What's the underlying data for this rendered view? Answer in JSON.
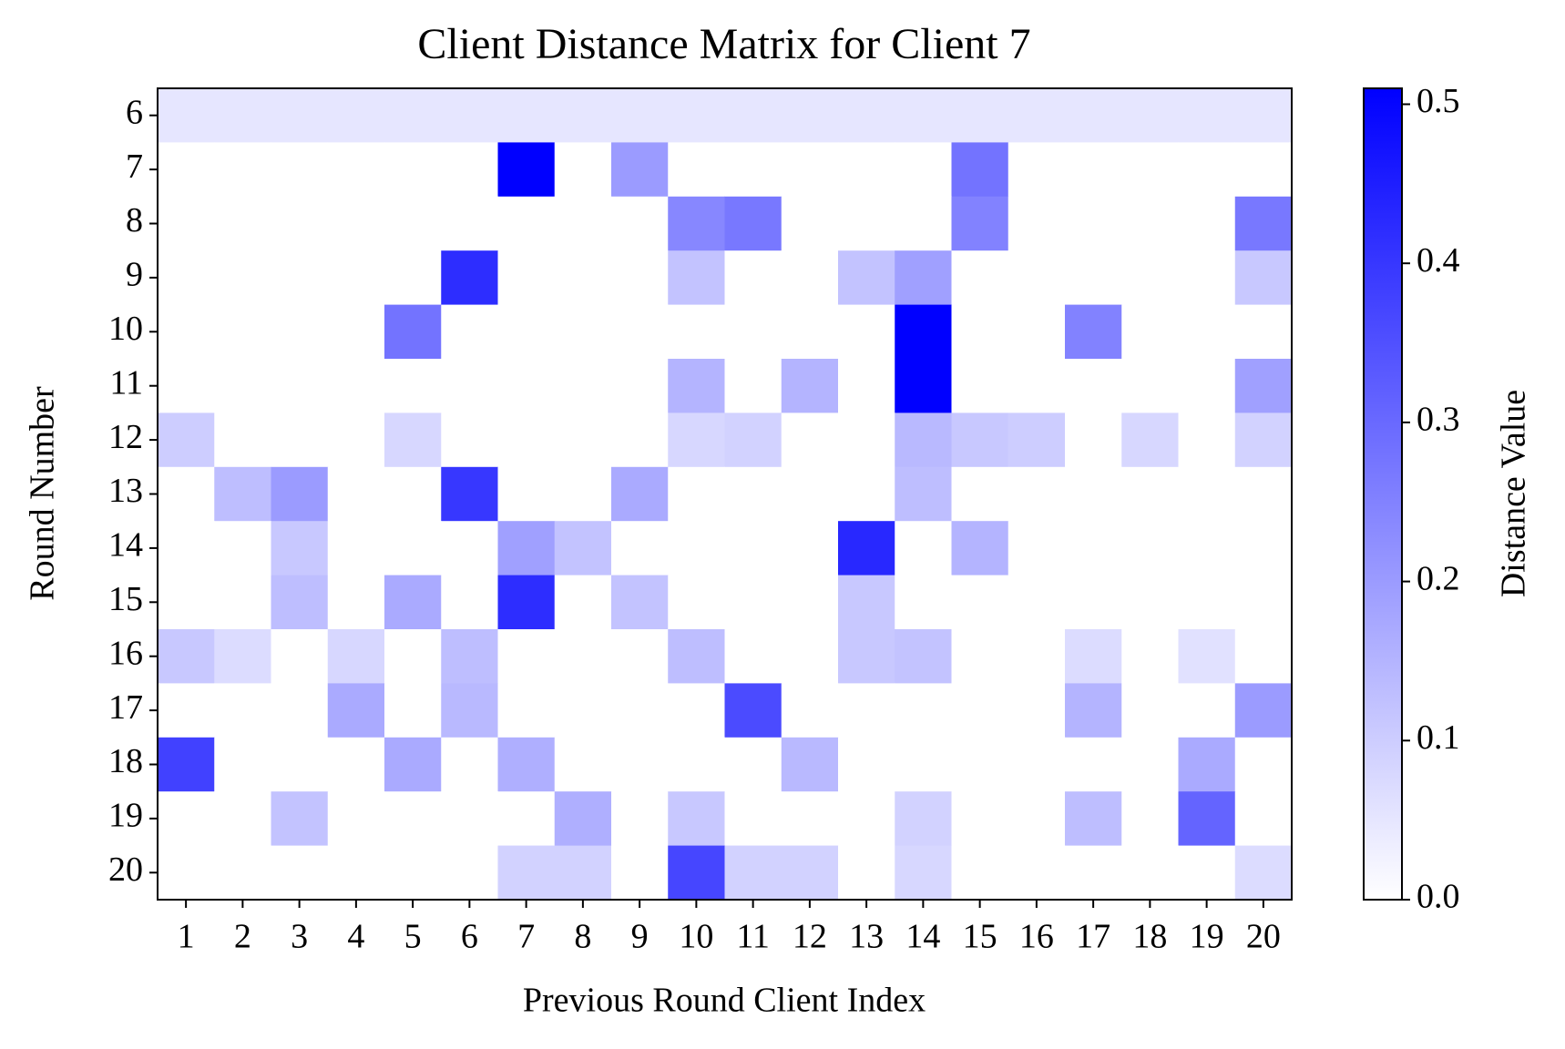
{
  "chart_data": {
    "type": "heatmap",
    "title": "Client Distance Matrix for Client 7",
    "x_label": "Previous Round Client Index",
    "y_label": "Round Number",
    "colorbar_label": "Distance Value",
    "x_categories": [
      "1",
      "2",
      "3",
      "4",
      "5",
      "6",
      "7",
      "8",
      "9",
      "10",
      "11",
      "12",
      "13",
      "14",
      "15",
      "16",
      "17",
      "18",
      "19",
      "20"
    ],
    "y_categories": [
      "6",
      "7",
      "8",
      "9",
      "10",
      "11",
      "12",
      "13",
      "14",
      "15",
      "16",
      "17",
      "18",
      "19",
      "20"
    ],
    "z": [
      [
        0.05,
        0.05,
        0.05,
        0.05,
        0.05,
        0.05,
        0.05,
        0.05,
        0.05,
        0.05,
        0.05,
        0.05,
        0.05,
        0.05,
        0.05,
        0.05,
        0.05,
        0.05,
        0.05,
        0.05
      ],
      [
        0,
        0,
        0,
        0,
        0,
        0,
        0.51,
        0,
        0.2,
        0,
        0,
        0,
        0,
        0,
        0.28,
        0,
        0,
        0,
        0,
        0
      ],
      [
        0,
        0,
        0,
        0,
        0,
        0,
        0,
        0,
        0,
        0.24,
        0.27,
        0,
        0,
        0,
        0.25,
        0,
        0,
        0,
        0,
        0.27
      ],
      [
        0,
        0,
        0,
        0,
        0,
        0.42,
        0,
        0,
        0,
        0.12,
        0,
        0,
        0.12,
        0.19,
        0,
        0,
        0,
        0,
        0,
        0.11
      ],
      [
        0,
        0,
        0,
        0,
        0.28,
        0,
        0,
        0,
        0,
        0,
        0,
        0,
        0,
        0.51,
        0,
        0,
        0.25,
        0,
        0,
        0
      ],
      [
        0,
        0,
        0,
        0,
        0,
        0,
        0,
        0,
        0,
        0.15,
        0,
        0.15,
        0,
        0.51,
        0,
        0,
        0,
        0,
        0,
        0.19
      ],
      [
        0.1,
        0,
        0,
        0,
        0.08,
        0,
        0,
        0,
        0,
        0.08,
        0.09,
        0,
        0,
        0.14,
        0.11,
        0.1,
        0,
        0.08,
        0,
        0.09
      ],
      [
        0,
        0.13,
        0.2,
        0,
        0,
        0.4,
        0,
        0,
        0.17,
        0,
        0,
        0,
        0,
        0.13,
        0,
        0,
        0,
        0,
        0,
        0
      ],
      [
        0,
        0,
        0.11,
        0,
        0,
        0,
        0.19,
        0.12,
        0,
        0,
        0,
        0,
        0.43,
        0,
        0.15,
        0,
        0,
        0,
        0,
        0
      ],
      [
        0,
        0,
        0.13,
        0,
        0.17,
        0,
        0.42,
        0,
        0.12,
        0,
        0,
        0,
        0.11,
        0,
        0,
        0,
        0,
        0,
        0,
        0
      ],
      [
        0.11,
        0.07,
        0,
        0.08,
        0,
        0.13,
        0,
        0,
        0,
        0.13,
        0,
        0,
        0.11,
        0.12,
        0,
        0,
        0.07,
        0,
        0.06,
        0
      ],
      [
        0,
        0,
        0,
        0.17,
        0,
        0.14,
        0,
        0,
        0,
        0,
        0.36,
        0,
        0,
        0,
        0,
        0,
        0.15,
        0,
        0,
        0.2
      ],
      [
        0.38,
        0,
        0,
        0,
        0.17,
        0,
        0.16,
        0,
        0,
        0,
        0,
        0.14,
        0,
        0,
        0,
        0,
        0,
        0,
        0.17,
        0
      ],
      [
        0,
        0,
        0.12,
        0,
        0,
        0,
        0,
        0.16,
        0,
        0.11,
        0,
        0,
        0,
        0.09,
        0,
        0,
        0.13,
        0,
        0.31,
        0
      ],
      [
        0,
        0,
        0,
        0,
        0,
        0,
        0.09,
        0.09,
        0,
        0.37,
        0.09,
        0.09,
        0,
        0.08,
        0,
        0,
        0,
        0,
        0,
        0.07
      ]
    ],
    "colors": [
      "#ffffff",
      "#0000ff"
    ],
    "clim": [
      0,
      0.51
    ],
    "cticks": [
      {
        "value": 0,
        "label": "0.0"
      },
      0.1,
      0.2,
      0.3,
      0.4,
      0.5
    ]
  }
}
